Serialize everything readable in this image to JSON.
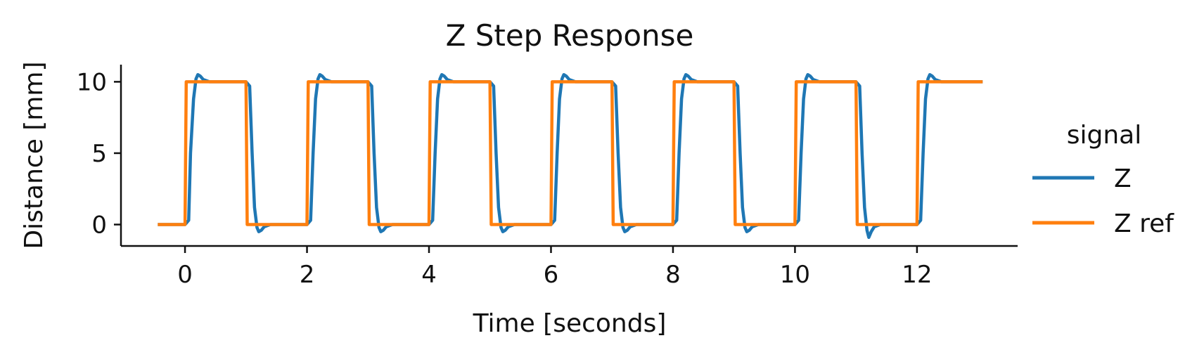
{
  "chart_data": {
    "type": "line",
    "title": "Z Step Response",
    "xlabel": "Time [seconds]",
    "ylabel": "Distance [mm]",
    "xlim": [
      -1.05,
      13.65
    ],
    "ylim": [
      -1.5,
      11.2
    ],
    "xticks": [
      0,
      2,
      4,
      6,
      8,
      10,
      12
    ],
    "yticks": [
      0,
      5,
      10
    ],
    "grid": false,
    "legend": {
      "title": "signal",
      "placement": "outside-right"
    },
    "series": [
      {
        "name": "Z",
        "color": "#1f77b4",
        "x": [
          -0.42,
          0.0,
          0.06,
          0.09,
          0.14,
          0.18,
          0.21,
          0.25,
          0.3,
          0.4,
          0.6,
          1.0,
          1.06,
          1.1,
          1.14,
          1.18,
          1.21,
          1.25,
          1.3,
          1.4,
          1.6,
          2.0,
          2.06,
          2.1,
          2.14,
          2.18,
          2.21,
          2.25,
          2.3,
          2.4,
          2.6,
          3.0,
          3.06,
          3.1,
          3.14,
          3.18,
          3.21,
          3.25,
          3.3,
          3.4,
          3.6,
          4.0,
          4.06,
          4.1,
          4.14,
          4.18,
          4.21,
          4.25,
          4.3,
          4.4,
          4.6,
          5.0,
          5.06,
          5.1,
          5.14,
          5.18,
          5.21,
          5.25,
          5.3,
          5.4,
          5.6,
          6.0,
          6.06,
          6.1,
          6.14,
          6.18,
          6.21,
          6.25,
          6.3,
          6.4,
          6.6,
          7.0,
          7.06,
          7.1,
          7.14,
          7.18,
          7.21,
          7.25,
          7.3,
          7.4,
          7.6,
          8.0,
          8.06,
          8.1,
          8.14,
          8.18,
          8.21,
          8.25,
          8.3,
          8.4,
          8.6,
          9.0,
          9.06,
          9.1,
          9.14,
          9.18,
          9.21,
          9.25,
          9.3,
          9.4,
          9.6,
          10.0,
          10.06,
          10.1,
          10.14,
          10.18,
          10.21,
          10.25,
          10.3,
          10.4,
          10.6,
          11.0,
          11.06,
          11.1,
          11.14,
          11.18,
          11.21,
          11.25,
          11.3,
          11.4,
          11.6,
          12.0,
          12.06,
          12.1,
          12.14,
          12.18,
          12.21,
          12.25,
          12.3,
          12.4,
          12.6,
          13.05
        ],
        "y": [
          0.0,
          0.0,
          0.3,
          5.0,
          8.8,
          10.2,
          10.5,
          10.4,
          10.15,
          10.0,
          10.0,
          10.0,
          9.7,
          5.0,
          1.2,
          -0.2,
          -0.5,
          -0.4,
          -0.15,
          0.0,
          0.0,
          0.0,
          0.3,
          5.0,
          8.8,
          10.2,
          10.5,
          10.4,
          10.15,
          10.0,
          10.0,
          10.0,
          9.7,
          5.0,
          1.2,
          -0.2,
          -0.5,
          -0.4,
          -0.15,
          0.0,
          0.0,
          0.0,
          0.3,
          5.0,
          8.8,
          10.2,
          10.5,
          10.4,
          10.15,
          10.0,
          10.0,
          10.0,
          9.7,
          5.0,
          1.2,
          -0.2,
          -0.5,
          -0.4,
          -0.15,
          0.0,
          0.0,
          0.0,
          0.3,
          5.0,
          8.8,
          10.2,
          10.5,
          10.4,
          10.15,
          10.0,
          10.0,
          10.0,
          9.7,
          5.0,
          1.2,
          -0.2,
          -0.5,
          -0.4,
          -0.15,
          0.0,
          0.0,
          0.0,
          0.3,
          5.0,
          8.8,
          10.2,
          10.5,
          10.4,
          10.15,
          10.0,
          10.0,
          10.0,
          9.7,
          5.0,
          1.2,
          -0.2,
          -0.5,
          -0.4,
          -0.15,
          0.0,
          0.0,
          0.0,
          0.3,
          5.0,
          8.8,
          10.2,
          10.5,
          10.4,
          10.15,
          10.0,
          10.0,
          10.0,
          9.7,
          5.0,
          1.2,
          -0.4,
          -0.9,
          -0.5,
          -0.15,
          0.0,
          0.0,
          0.0,
          0.3,
          5.0,
          8.8,
          10.2,
          10.5,
          10.4,
          10.15,
          10.0,
          10.0,
          10.0
        ]
      },
      {
        "name": "Z ref",
        "color": "#ff7f0e",
        "x": [
          -0.42,
          0.0,
          0.02,
          1.0,
          1.02,
          2.0,
          2.02,
          3.0,
          3.02,
          4.0,
          4.02,
          5.0,
          5.02,
          6.0,
          6.02,
          7.0,
          7.02,
          8.0,
          8.02,
          9.0,
          9.02,
          10.0,
          10.02,
          11.0,
          11.02,
          12.0,
          12.02,
          13.05
        ],
        "y": [
          0.0,
          0.0,
          10.0,
          10.0,
          0.0,
          0.0,
          10.0,
          10.0,
          0.0,
          0.0,
          10.0,
          10.0,
          0.0,
          0.0,
          10.0,
          10.0,
          0.0,
          0.0,
          10.0,
          10.0,
          0.0,
          0.0,
          10.0,
          10.0,
          0.0,
          0.0,
          10.0,
          10.0
        ]
      }
    ]
  }
}
